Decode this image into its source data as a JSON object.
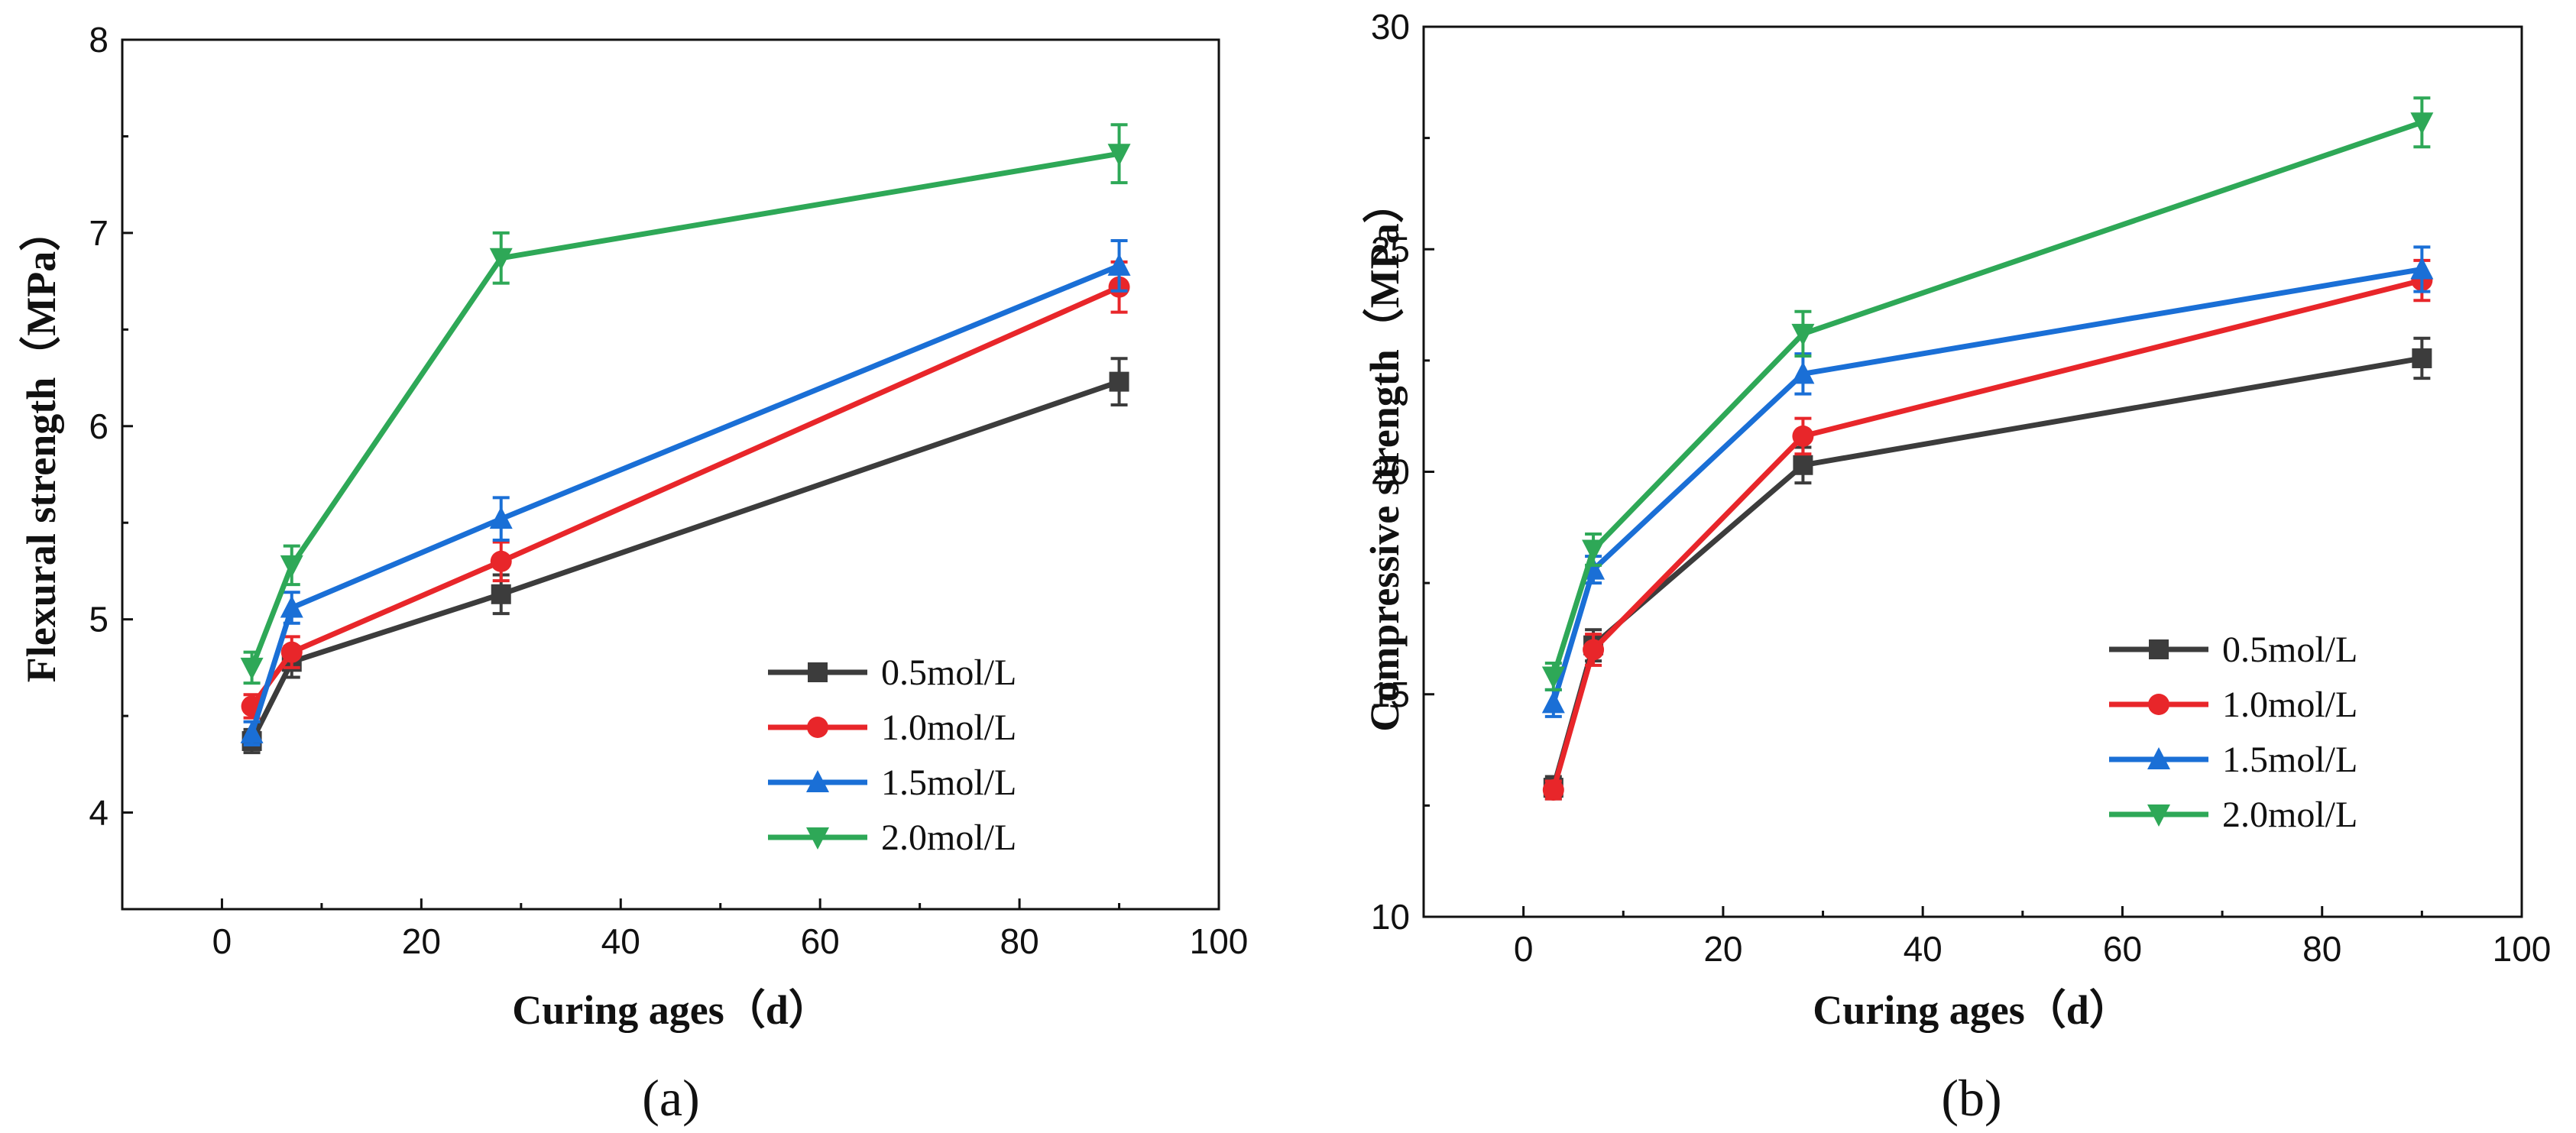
{
  "chart_data": [
    {
      "type": "line",
      "panel_label": "(a)",
      "xlabel": "Curing ages（d）",
      "ylabel": "Flexural strength（MPa）",
      "xlim": [
        -10,
        100
      ],
      "ylim": [
        3.5,
        8
      ],
      "xticks": [
        "0",
        "20",
        "40",
        "60",
        "80",
        "100"
      ],
      "yticks": [
        "4",
        "5",
        "6",
        "7",
        "8"
      ],
      "x": [
        3,
        7,
        28,
        90
      ],
      "legend_position": "bottom-right",
      "series": [
        {
          "name": "0.5mol/L",
          "color": "#3c3c3c",
          "marker": "square",
          "values": [
            4.37,
            4.78,
            5.13,
            6.23
          ],
          "errors": [
            0.06,
            0.08,
            0.1,
            0.12
          ]
        },
        {
          "name": "1.0mol/L",
          "color": "#e8262a",
          "marker": "circle",
          "values": [
            4.55,
            4.83,
            5.3,
            6.72
          ],
          "errors": [
            0.06,
            0.08,
            0.1,
            0.13
          ]
        },
        {
          "name": "1.5mol/L",
          "color": "#1a6fd6",
          "marker": "triangle-up",
          "values": [
            4.41,
            5.06,
            5.52,
            6.83
          ],
          "errors": [
            0.06,
            0.08,
            0.11,
            0.13
          ]
        },
        {
          "name": "2.0mol/L",
          "color": "#2ea857",
          "marker": "triangle-down",
          "values": [
            4.75,
            5.28,
            6.87,
            7.41
          ],
          "errors": [
            0.08,
            0.1,
            0.13,
            0.15
          ]
        }
      ]
    },
    {
      "type": "line",
      "panel_label": "(b)",
      "xlabel": "Curing ages（d）",
      "ylabel": "Compressive strength（MPa）",
      "xlim": [
        -10,
        100
      ],
      "ylim": [
        10,
        30
      ],
      "xticks": [
        "0",
        "20",
        "40",
        "60",
        "80",
        "100"
      ],
      "yticks": [
        "10",
        "15",
        "20",
        "25",
        "30"
      ],
      "x": [
        3,
        7,
        28,
        90
      ],
      "legend_position": "bottom-right",
      "series": [
        {
          "name": "0.5mol/L",
          "color": "#3c3c3c",
          "marker": "square",
          "values": [
            12.9,
            16.1,
            20.15,
            22.55
          ],
          "errors": [
            0.25,
            0.35,
            0.4,
            0.45
          ]
        },
        {
          "name": "1.0mol/L",
          "color": "#e8262a",
          "marker": "circle",
          "values": [
            12.85,
            16.0,
            20.8,
            24.3
          ],
          "errors": [
            0.2,
            0.35,
            0.4,
            0.45
          ]
        },
        {
          "name": "1.5mol/L",
          "color": "#1a6fd6",
          "marker": "triangle-up",
          "values": [
            14.8,
            17.8,
            22.2,
            24.55
          ],
          "errors": [
            0.3,
            0.3,
            0.45,
            0.5
          ]
        },
        {
          "name": "2.0mol/L",
          "color": "#2ea857",
          "marker": "triangle-down",
          "values": [
            15.4,
            18.25,
            23.1,
            27.85
          ],
          "errors": [
            0.3,
            0.35,
            0.5,
            0.55
          ]
        }
      ]
    }
  ]
}
